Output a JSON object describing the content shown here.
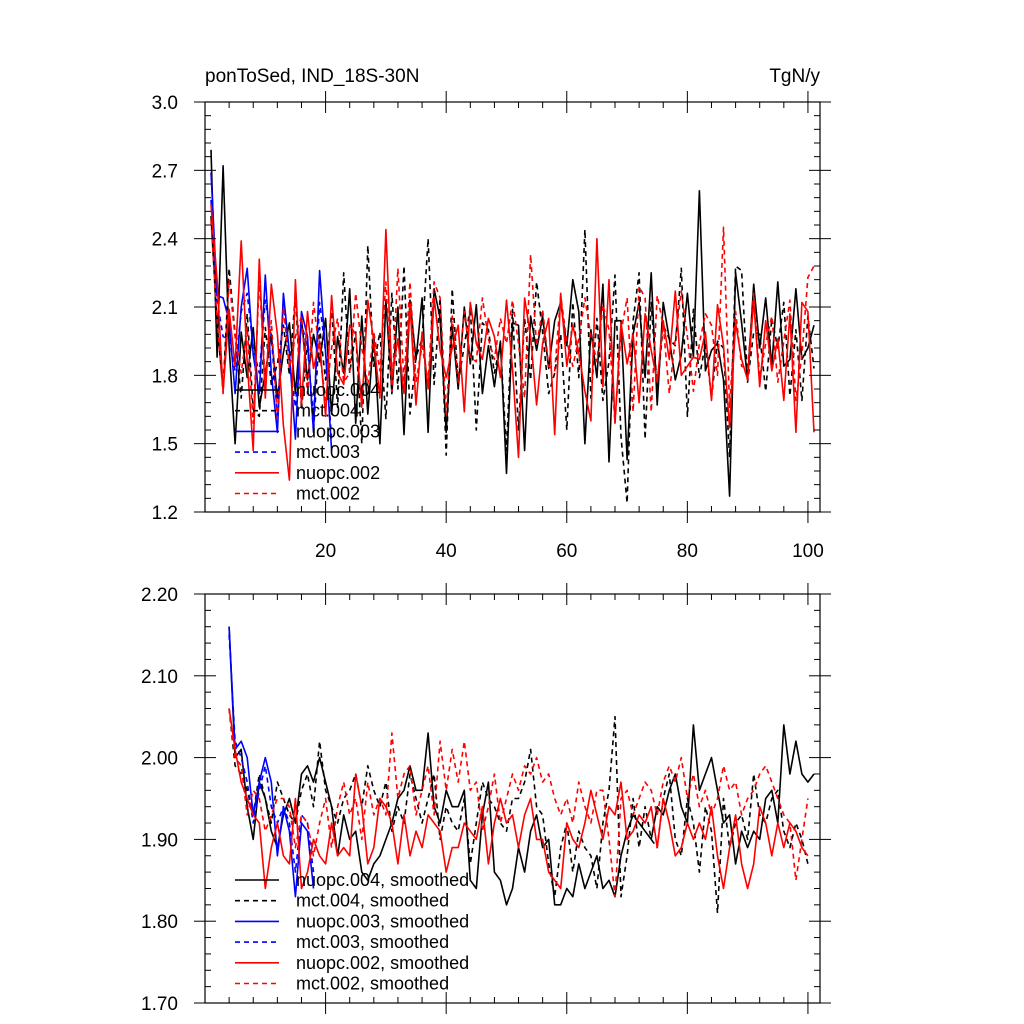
{
  "chart_data": [
    {
      "type": "line",
      "title_left": "ponToSed, IND_18S-30N",
      "title_right": "TgN/y",
      "xlim": [
        0,
        102
      ],
      "ylim": [
        1.2,
        3.0
      ],
      "xticks": [
        20,
        40,
        60,
        80,
        100
      ],
      "xtick_labels": [
        "20",
        "40",
        "60",
        "80",
        "100"
      ],
      "yticks": [
        1.2,
        1.5,
        1.8,
        2.1,
        2.4,
        2.7,
        3.0
      ],
      "ytick_labels": [
        "1.2",
        "1.5",
        "1.8",
        "2.1",
        "2.4",
        "2.7",
        "3.0"
      ],
      "legend": [
        "nuopc.004",
        "mct.004",
        "nuopc.003",
        "mct.003",
        "nuopc.002",
        "mct.002"
      ],
      "series": [
        {
          "name": "nuopc.004",
          "color": "#000000",
          "dash": "solid",
          "x_start": 1,
          "values": [
            2.79,
            1.88,
            2.72,
            1.93,
            1.5,
            1.99,
            1.79,
            2.01,
            1.66,
            1.81,
            1.98,
            1.7,
            1.9,
            2.03,
            1.72,
            2.05,
            1.78,
            1.98,
            1.86,
            2.05,
            1.63,
            1.97,
            1.81,
            2.18,
            1.59,
            2.06,
            1.63,
            1.98,
            1.5,
            2.13,
            1.72,
            2.1,
            1.54,
            2.13,
            1.87,
            2.14,
            1.55,
            2.18,
            2.05,
            1.55,
            2.02,
            1.74,
            2.1,
            1.85,
            2.11,
            1.72,
            1.93,
            1.75,
            1.95,
            1.37,
            2.03,
            2.02,
            1.47,
            2.06,
            1.91,
            2.06,
            1.83,
            2.04,
            2.12,
            1.93,
            2.22,
            2.08,
            1.5,
            2.0,
            1.79,
            2.2,
            1.42,
            2.04,
            2.04,
            1.43,
            1.98,
            2.12,
            1.79,
            2.25,
            1.67,
            2.12,
            1.96,
            1.78,
            1.89,
            2.16,
            1.88,
            2.61,
            1.82,
            1.91,
            1.94,
            1.78,
            1.27,
            2.25,
            2.03,
            1.78,
            2.2,
            1.92,
            2.14,
            1.84,
            2.21,
            1.84,
            1.87,
            2.18,
            1.87,
            1.92,
            2.02
          ]
        },
        {
          "name": "mct.004",
          "color": "#000000",
          "dash": "dashed",
          "x_start": 1,
          "values": [
            2.5,
            2.02,
            1.74,
            2.27,
            1.98,
            1.7,
            2.07,
            1.65,
            1.62,
            2.01,
            1.76,
            1.85,
            2.02,
            1.8,
            2.16,
            1.65,
            1.95,
            1.55,
            2.01,
            1.78,
            2.1,
            1.66,
            2.25,
            1.81,
            1.99,
            1.5,
            2.37,
            1.84,
            1.99,
            1.61,
            2.16,
            1.74,
            2.28,
            1.63,
            1.88,
            1.96,
            2.4,
            1.76,
            2.14,
            1.45,
            2.18,
            1.77,
            1.93,
            2.1,
            1.56,
            2.03,
            2.0,
            1.81,
            1.94,
            1.47,
            2.09,
            1.56,
            2.05,
            1.78,
            2.21,
            1.99,
            1.72,
            1.81,
            1.98,
            1.56,
            2.12,
            1.79,
            2.44,
            1.7,
            2.05,
            1.69,
            1.86,
            2.24,
            1.53,
            1.24,
            2.04,
            2.25,
            1.52,
            2.12,
            1.74,
            2.02,
            1.96,
            1.93,
            2.27,
            1.62,
            2.09,
            1.79,
            1.94,
            1.7,
            1.95,
            1.92,
            1.44,
            2.28,
            2.26,
            1.77,
            1.99,
            1.98,
            1.73,
            2.05,
            1.92,
            2.12,
            1.71,
            2.0,
            1.69,
            2.06,
            1.83
          ]
        },
        {
          "name": "nuopc.003",
          "color": "#0000ff",
          "dash": "solid",
          "x_start": 1,
          "values": [
            2.69,
            2.15,
            2.14,
            2.04,
            1.72,
            2.1,
            2.27,
            1.89,
            1.72,
            2.24,
            1.81,
            1.55,
            2.16,
            1.9,
            1.52,
            2.08,
            1.97,
            1.55,
            2.26,
            1.9,
            1.47
          ]
        },
        {
          "name": "mct.003",
          "color": "#0000ff",
          "dash": "dashed",
          "x_start": 1,
          "values": [
            2.57,
            2.13,
            1.97,
            1.96,
            1.82,
            2.08,
            2.16,
            1.92,
            1.81,
            2.13,
            1.97,
            1.62,
            2.12,
            1.86,
            1.66,
            2.03,
            1.92,
            1.62,
            2.12,
            1.9,
            1.52
          ]
        },
        {
          "name": "nuopc.002",
          "color": "#ff0000",
          "dash": "solid",
          "x_start": 1,
          "values": [
            2.55,
            2.22,
            1.73,
            2.09,
            1.84,
            2.39,
            1.86,
            1.47,
            2.31,
            1.7,
            2.2,
            1.98,
            1.58,
            1.34,
            2.22,
            1.67,
            2.08,
            1.83,
            1.95,
            1.62,
            2.15,
            1.81,
            1.76,
            2.02,
            1.98,
            1.66,
            2.13,
            1.95,
            1.7,
            2.44,
            1.79,
            1.96,
            1.72,
            2.11,
            1.67,
            1.99,
            1.74,
            2.14,
            1.91,
            1.79,
            1.92,
            2.02,
            1.64,
            2.12,
            1.94,
            1.87,
            2.05,
            1.97,
            1.79,
            2.13,
            1.83,
            1.44,
            2.14,
            1.97,
            1.67,
            1.94,
            2.05,
            1.54,
            2.16,
            1.84,
            2.02,
            1.9,
            1.73,
            1.6,
            2.4,
            1.75,
            2.22,
            1.59,
            2.03,
            1.85,
            1.98,
            1.68,
            2.07,
            1.91,
            1.77,
            2.04,
            1.87,
            2.17,
            1.8,
            1.84,
            1.88,
            1.87,
            1.99,
            1.69,
            2.11,
            1.93,
            1.57,
            2.03,
            1.87,
            1.78,
            2.13,
            1.75,
            2.04,
            1.82,
            1.96,
            1.69,
            2.07,
            1.55,
            2.12,
            2.08,
            1.55
          ]
        },
        {
          "name": "mct.002",
          "color": "#ff0000",
          "dash": "dashed",
          "x_start": 1,
          "values": [
            2.48,
            2.04,
            1.72,
            2.22,
            1.97,
            1.81,
            2.01,
            1.59,
            2.22,
            1.77,
            2.04,
            1.61,
            2.1,
            1.83,
            1.97,
            2.06,
            1.72,
            2.12,
            1.9,
            1.69,
            1.92,
            2.05,
            1.77,
            1.81,
            2.16,
            1.92,
            1.76,
            1.99,
            1.82,
            2.21,
            1.73,
            2.27,
            1.77,
            2.21,
            1.77,
            1.93,
            1.77,
            2.21,
            2.14,
            1.63,
            2.06,
            1.77,
            2.08,
            1.88,
            1.86,
            2.14,
            1.96,
            1.87,
            2.05,
            1.94,
            2.13,
            1.94,
            1.7,
            2.33,
            1.93,
            2.09,
            1.84,
            1.82,
            2.15,
            1.95,
            1.84,
            1.96,
            2.14,
            1.97,
            1.86,
            2.11,
            2.0,
            1.59,
            1.99,
            2.14,
            1.64,
            2.19,
            2.14,
            1.64,
            2.15,
            2.02,
            1.72,
            1.96,
            2.17,
            1.97,
            1.73,
            1.94,
            2.07,
            2.02,
            1.8,
            2.45,
            1.66,
            2.08,
            1.84,
            1.83,
            2.16,
            1.79,
            1.94,
            2.06,
            1.77,
            1.95,
            2.13,
            1.69,
            1.89,
            2.23,
            2.28
          ]
        }
      ]
    },
    {
      "type": "line",
      "xlim": [
        0,
        102
      ],
      "ylim": [
        1.7,
        2.2
      ],
      "xticks": [
        20,
        40,
        60,
        80,
        100
      ],
      "yticks": [
        1.7,
        1.8,
        1.9,
        2.0,
        2.1,
        2.2
      ],
      "ytick_labels": [
        "1.70",
        "1.80",
        "1.90",
        "2.00",
        "2.10",
        "2.20"
      ],
      "legend": [
        "nuopc.004, smoothed",
        "mct.004, smoothed",
        "nuopc.003, smoothed",
        "mct.003, smoothed",
        "nuopc.002, smoothed",
        "mct.002, smoothed"
      ],
      "series": [
        {
          "name": "nuopc.004, smoothed",
          "color": "#000000",
          "dash": "solid",
          "x_start": 4,
          "values": [
            2.16,
            2.0,
            2.01,
            1.94,
            1.9,
            1.97,
            1.95,
            1.91,
            1.89,
            1.93,
            1.95,
            1.92,
            1.98,
            1.99,
            1.97,
            2.0,
            1.97,
            1.94,
            1.88,
            1.93,
            1.9,
            1.91,
            1.86,
            1.85,
            1.87,
            1.88,
            1.9,
            1.92,
            1.95,
            1.96,
            1.99,
            1.96,
            1.96,
            2.03,
            1.94,
            1.92,
            1.96,
            1.94,
            1.94,
            1.96,
            1.85,
            1.84,
            1.93,
            1.97,
            1.86,
            1.85,
            1.82,
            1.84,
            1.89,
            1.86,
            1.91,
            1.93,
            1.89,
            1.9,
            1.82,
            1.82,
            1.84,
            1.83,
            1.87,
            1.84,
            1.86,
            1.88,
            1.84,
            1.85,
            1.83,
            1.88,
            1.91,
            1.93,
            1.92,
            1.91,
            1.9,
            1.94,
            1.93,
            1.96,
            1.98,
            1.94,
            1.92,
            2.04,
            1.96,
            1.98,
            2.0,
            1.96,
            1.92,
            1.93,
            1.87,
            1.91,
            1.89,
            1.91,
            1.9,
            1.95,
            1.96,
            1.92,
            2.04,
            1.98,
            2.02,
            1.98,
            1.97,
            1.98
          ]
        },
        {
          "name": "mct.004, smoothed",
          "color": "#000000",
          "dash": "dashed",
          "x_start": 4,
          "values": [
            2.06,
            1.99,
            1.98,
            1.96,
            1.93,
            1.98,
            1.95,
            1.92,
            1.97,
            1.95,
            1.93,
            1.92,
            1.96,
            1.98,
            1.94,
            2.02,
            1.96,
            1.94,
            1.92,
            1.95,
            1.96,
            1.98,
            1.94,
            1.99,
            1.96,
            1.94,
            1.97,
            1.91,
            1.94,
            1.92,
            1.98,
            1.95,
            1.92,
            1.95,
            1.98,
            1.9,
            1.94,
            1.92,
            1.91,
            1.95,
            1.87,
            1.92,
            1.97,
            1.95,
            1.94,
            1.92,
            1.91,
            1.95,
            1.95,
            1.97,
            2.01,
            1.94,
            1.93,
            1.87,
            1.83,
            1.89,
            1.92,
            1.86,
            1.91,
            1.89,
            1.88,
            1.84,
            1.92,
            1.96,
            2.05,
            1.83,
            1.88,
            1.95,
            1.89,
            1.94,
            1.9,
            1.89,
            1.95,
            1.98,
            1.9,
            1.88,
            1.95,
            1.92,
            1.86,
            1.94,
            1.91,
            1.81,
            1.95,
            1.89,
            1.92,
            1.93,
            1.9,
            1.98,
            1.93,
            1.92,
            1.95,
            1.96,
            1.91,
            1.89,
            1.92,
            1.9,
            1.87
          ]
        },
        {
          "name": "nuopc.003, smoothed",
          "color": "#0000ff",
          "dash": "solid",
          "x_start": 4,
          "values": [
            2.16,
            2.01,
            2.02,
            2.0,
            1.93,
            1.97,
            2.0,
            1.97,
            1.88,
            1.94,
            1.91,
            1.83,
            1.92,
            1.91,
            1.84
          ]
        },
        {
          "name": "mct.003, smoothed",
          "color": "#0000ff",
          "dash": "dashed",
          "x_start": 4,
          "values": [
            2.15,
            2.02,
            2.0,
            1.97,
            1.92,
            1.96,
            1.99,
            1.94,
            1.92,
            1.94,
            1.92,
            1.86,
            1.93,
            1.92,
            1.86
          ]
        },
        {
          "name": "nuopc.002, smoothed",
          "color": "#ff0000",
          "dash": "solid",
          "x_start": 4,
          "values": [
            2.06,
            2.01,
            1.97,
            1.95,
            1.93,
            1.92,
            1.84,
            1.89,
            1.92,
            1.88,
            1.87,
            1.95,
            1.84,
            1.86,
            1.9,
            1.88,
            1.87,
            1.92,
            1.88,
            1.89,
            1.88,
            1.98,
            1.94,
            1.87,
            1.89,
            1.95,
            1.94,
            1.92,
            1.87,
            1.93,
            1.88,
            1.91,
            1.89,
            1.93,
            1.92,
            1.91,
            1.86,
            1.89,
            1.89,
            1.92,
            1.91,
            1.9,
            1.94,
            1.87,
            1.92,
            1.95,
            1.92,
            1.93,
            1.89,
            1.93,
            1.95,
            1.9,
            1.9,
            1.86,
            1.85,
            1.84,
            1.92,
            1.9,
            1.89,
            1.92,
            1.96,
            1.93,
            1.9,
            1.94,
            1.93,
            1.97,
            1.9,
            1.91,
            1.93,
            1.92,
            1.94,
            1.89,
            1.95,
            1.92,
            1.88,
            1.89,
            1.92,
            1.9,
            1.92,
            1.9,
            1.94,
            1.88,
            1.84,
            1.89,
            1.93,
            1.87,
            1.84,
            1.87,
            1.94,
            1.92,
            1.88,
            1.92,
            1.89,
            1.92,
            1.91,
            1.89,
            1.88
          ]
        },
        {
          "name": "mct.002, smoothed",
          "color": "#ff0000",
          "dash": "dashed",
          "x_start": 4,
          "values": [
            2.06,
            2.0,
            1.99,
            1.93,
            1.96,
            1.95,
            1.91,
            1.93,
            1.95,
            1.95,
            1.94,
            1.89,
            1.93,
            1.92,
            1.88,
            1.92,
            1.95,
            1.89,
            1.94,
            1.97,
            1.93,
            1.95,
            1.9,
            1.97,
            1.93,
            1.95,
            1.93,
            2.03,
            1.95,
            1.98,
            1.99,
            1.93,
            1.96,
            1.99,
            1.93,
            2.02,
            1.96,
            2.01,
            1.97,
            2.02,
            1.96,
            1.97,
            1.91,
            1.94,
            1.98,
            1.92,
            1.95,
            1.98,
            1.96,
            1.99,
            1.98,
            2.0,
            1.97,
            1.98,
            1.95,
            1.93,
            1.95,
            1.92,
            1.97,
            1.94,
            1.92,
            1.96,
            1.96,
            1.9,
            1.83,
            1.95,
            1.96,
            1.93,
            1.95,
            1.97,
            1.96,
            1.93,
            1.97,
            1.99,
            1.97,
            2.0,
            1.95,
            1.98,
            1.94,
            1.96,
            1.93,
            1.95,
            1.99,
            1.96,
            1.97,
            1.93,
            1.95,
            1.96,
            1.98,
            1.99,
            1.97,
            1.95,
            1.93,
            1.92,
            1.85,
            1.9,
            1.95
          ]
        }
      ]
    }
  ]
}
